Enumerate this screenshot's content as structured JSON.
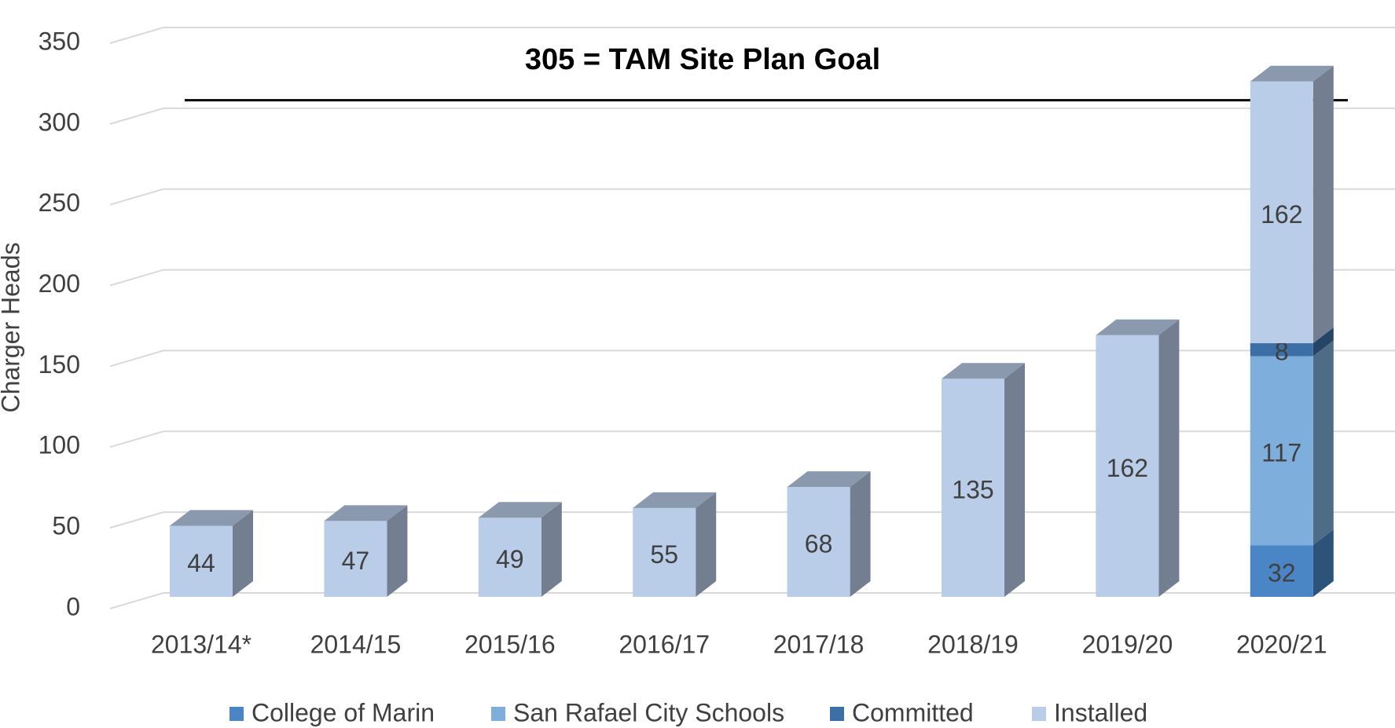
{
  "chart_data": {
    "type": "bar3d_stacked",
    "y_label": "Charger Heads",
    "annotation": "305 = TAM Site Plan Goal",
    "goal": 305,
    "categories": [
      "2013/14*",
      "2014/15",
      "2015/16",
      "2016/17",
      "2017/18",
      "2018/19",
      "2019/20",
      "2020/21"
    ],
    "series": [
      {
        "name": "College of Marin",
        "color": "#4a86c5",
        "values": [
          null,
          null,
          null,
          null,
          null,
          null,
          null,
          32
        ]
      },
      {
        "name": "San Rafael City Schools",
        "color": "#7eaedc",
        "values": [
          null,
          null,
          null,
          null,
          null,
          null,
          null,
          117
        ]
      },
      {
        "name": "Committed",
        "color": "#3b6fa5",
        "values": [
          null,
          null,
          null,
          null,
          null,
          null,
          null,
          8
        ]
      },
      {
        "name": "Installed",
        "color": "#b9cce8",
        "values": [
          44,
          47,
          49,
          55,
          68,
          135,
          162,
          162
        ]
      }
    ],
    "ylim": [
      0,
      350
    ],
    "yticks": [
      0,
      50,
      100,
      150,
      200,
      250,
      300,
      350
    ],
    "grid": true
  }
}
